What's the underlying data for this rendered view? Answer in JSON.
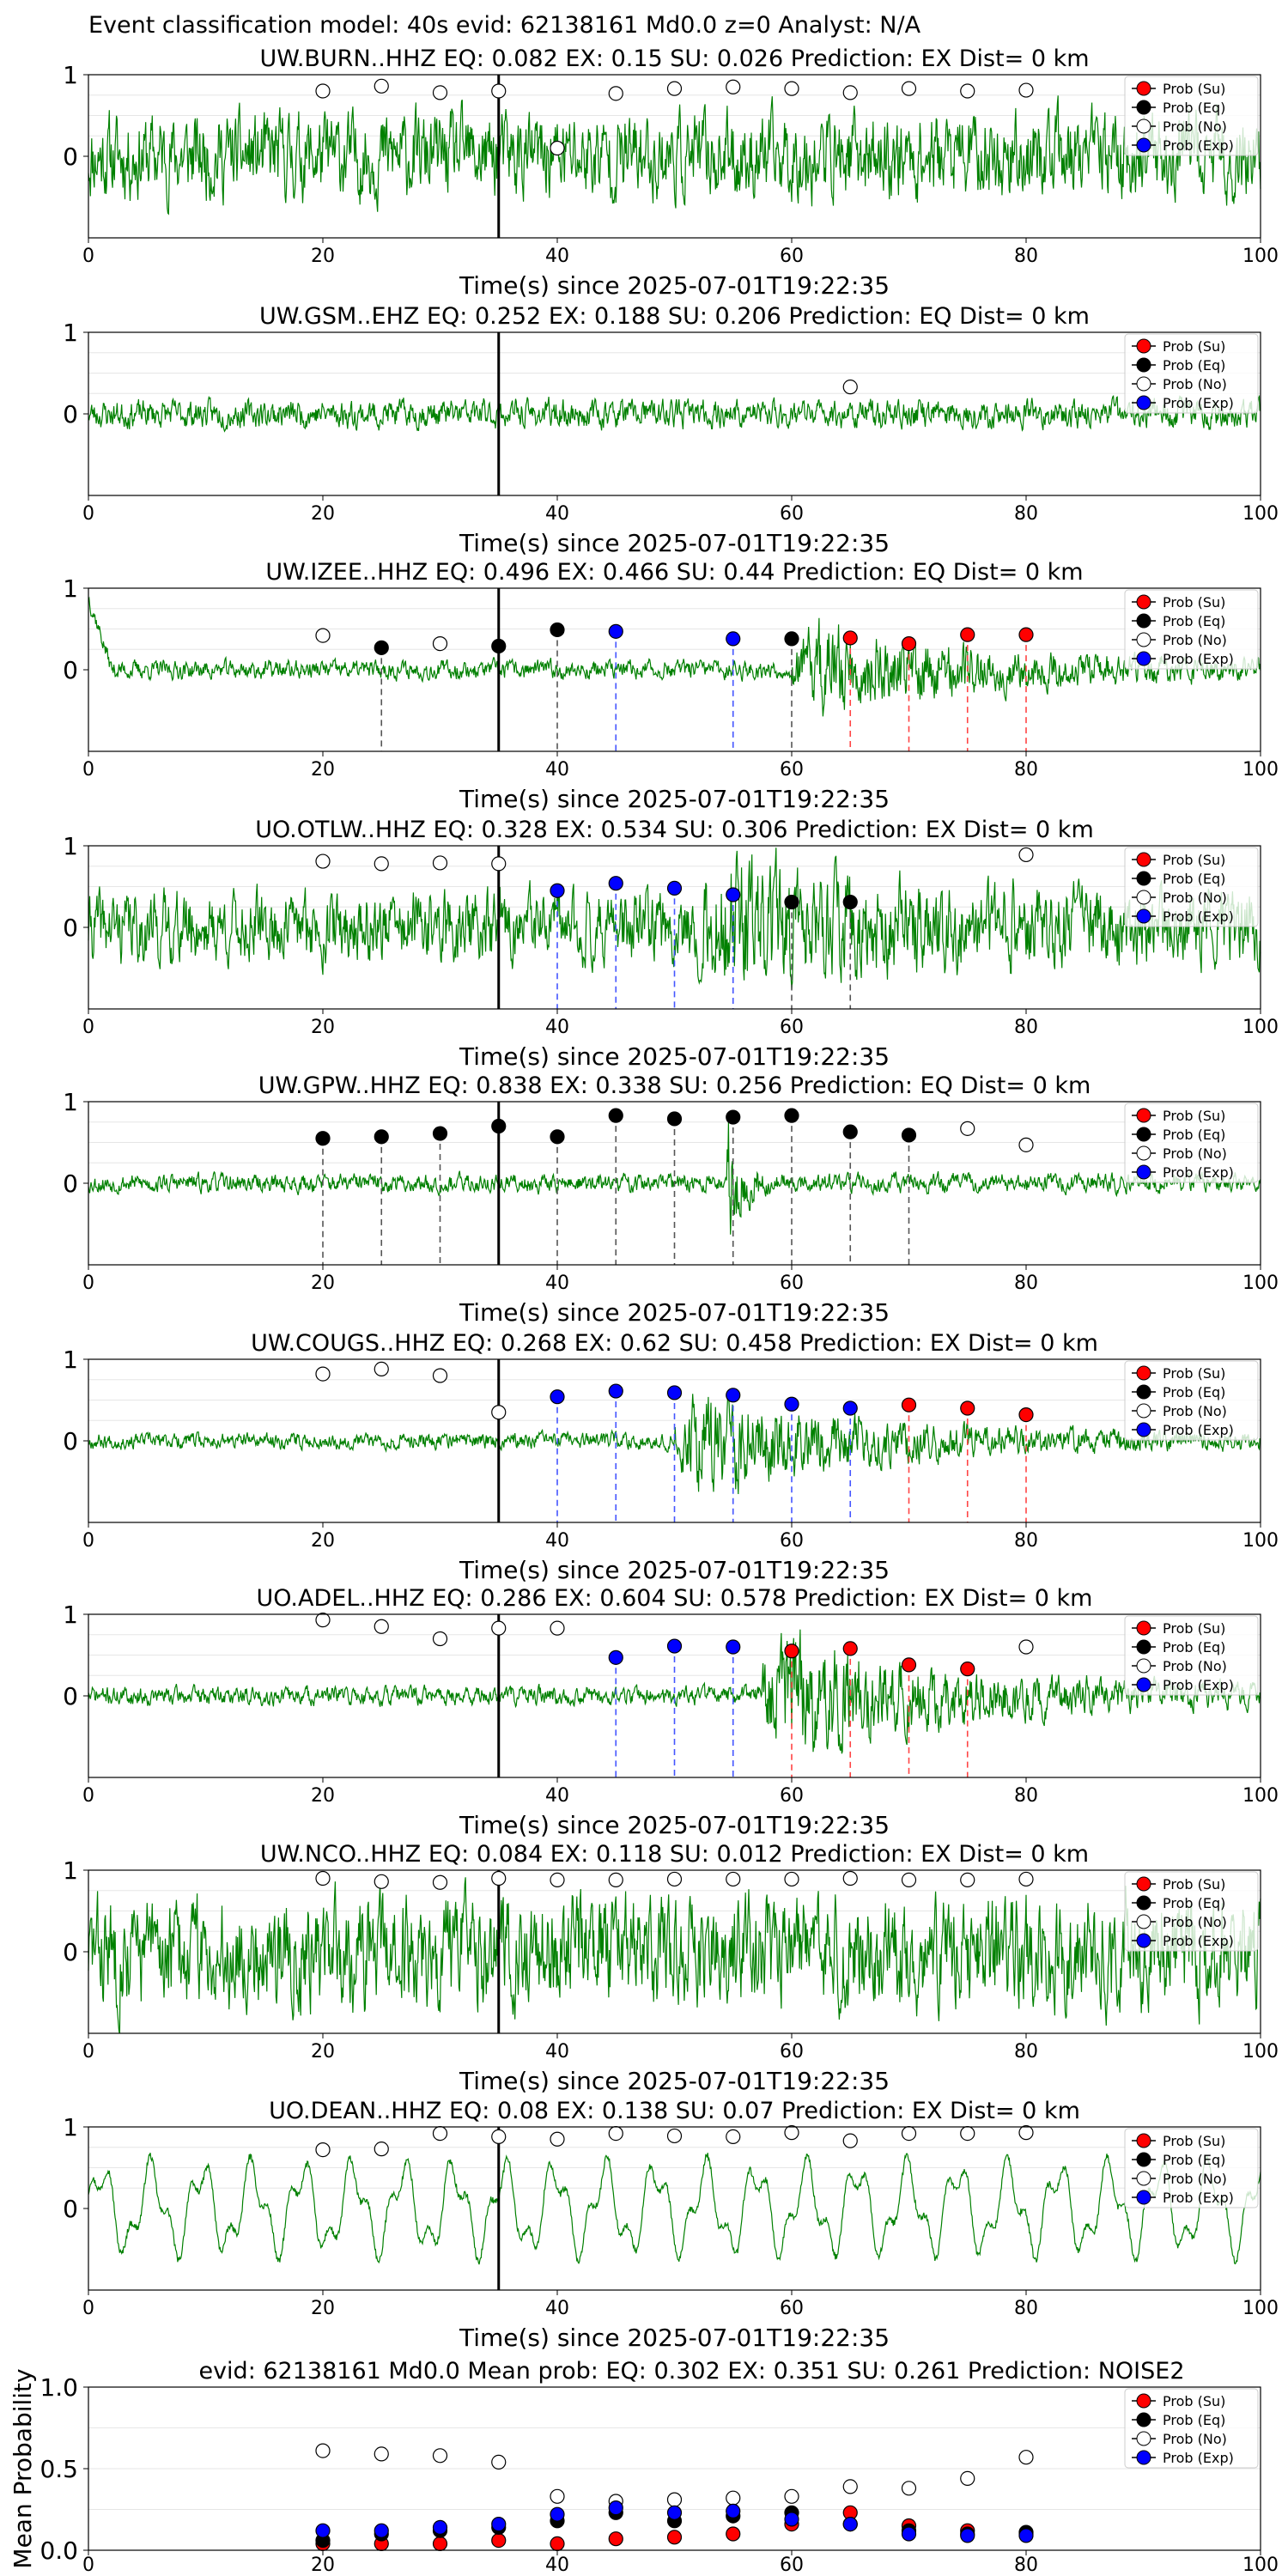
{
  "figure": {
    "suptitle": "Event classification model: 40s evid: 62138161 Md0.0 z=0 Analyst: N/A"
  },
  "legend_entries": [
    "Prob (Su)",
    "Prob (Eq)",
    "Prob (No)",
    "Prob (Exp)"
  ],
  "colors": {
    "su": "#ff0000",
    "eq": "#000000",
    "no": "#ffffff",
    "exp": "#0000ff",
    "waveform": "#008000"
  },
  "chart_data": [
    {
      "type": "line",
      "title": "UW.BURN..HHZ   EQ: 0.082  EX: 0.15  SU: 0.026   Prediction: EX    Dist= 0 km",
      "xlabel": "Time(s) since 2025-07-01T19:22:35",
      "xlim": [
        0,
        100
      ],
      "ylim": [
        -1,
        1
      ],
      "xticks": [
        0,
        20,
        40,
        60,
        80,
        100
      ],
      "yticks": [
        0,
        1
      ],
      "pick_time": 35,
      "waveform": {
        "amplitude": 0.55,
        "seed": 11,
        "style": "noise",
        "onset": 0,
        "envelope": []
      },
      "points": [
        {
          "t": 20,
          "cls": "no",
          "p": 0.8
        },
        {
          "t": 25,
          "cls": "no",
          "p": 0.86
        },
        {
          "t": 30,
          "cls": "no",
          "p": 0.78
        },
        {
          "t": 35,
          "cls": "no",
          "p": 0.8
        },
        {
          "t": 40,
          "cls": "no",
          "p": 0.1
        },
        {
          "t": 45,
          "cls": "no",
          "p": 0.77
        },
        {
          "t": 50,
          "cls": "no",
          "p": 0.83
        },
        {
          "t": 55,
          "cls": "no",
          "p": 0.85
        },
        {
          "t": 60,
          "cls": "no",
          "p": 0.83
        },
        {
          "t": 65,
          "cls": "no",
          "p": 0.78
        },
        {
          "t": 70,
          "cls": "no",
          "p": 0.83
        },
        {
          "t": 75,
          "cls": "no",
          "p": 0.8
        },
        {
          "t": 80,
          "cls": "no",
          "p": 0.81
        }
      ]
    },
    {
      "type": "line",
      "title": "UW.GSM..EHZ   EQ: 0.252  EX: 0.188  SU: 0.206   Prediction: EQ    Dist= 0 km",
      "xlabel": "Time(s) since 2025-07-01T19:22:35",
      "xlim": [
        0,
        100
      ],
      "ylim": [
        -1,
        1
      ],
      "xticks": [
        0,
        20,
        40,
        60,
        80,
        100
      ],
      "yticks": [
        0,
        1
      ],
      "pick_time": 35,
      "waveform": {
        "amplitude": 0.18,
        "seed": 23,
        "style": "noise",
        "onset": 0,
        "envelope": []
      },
      "points": [
        {
          "t": 65,
          "cls": "no",
          "p": 0.33
        }
      ]
    },
    {
      "type": "line",
      "title": "UW.IZEE..HHZ   EQ: 0.496  EX: 0.466  SU: 0.44   Prediction: EQ    Dist= 0 km",
      "xlabel": "Time(s) since 2025-07-01T19:22:35",
      "xlim": [
        0,
        100
      ],
      "ylim": [
        -1,
        1
      ],
      "xticks": [
        0,
        20,
        40,
        60,
        80,
        100
      ],
      "yticks": [
        0,
        1
      ],
      "pick_time": 35,
      "waveform": {
        "amplitude": 0.12,
        "seed": 37,
        "style": "noise",
        "onset": 60,
        "envelope": [
          0.6
        ]
      },
      "points": [
        {
          "t": 20,
          "cls": "no",
          "p": 0.42
        },
        {
          "t": 25,
          "cls": "eq",
          "p": 0.27
        },
        {
          "t": 30,
          "cls": "no",
          "p": 0.32
        },
        {
          "t": 35,
          "cls": "eq",
          "p": 0.29
        },
        {
          "t": 40,
          "cls": "eq",
          "p": 0.49
        },
        {
          "t": 45,
          "cls": "exp",
          "p": 0.47
        },
        {
          "t": 55,
          "cls": "exp",
          "p": 0.38
        },
        {
          "t": 60,
          "cls": "eq",
          "p": 0.38
        },
        {
          "t": 65,
          "cls": "su",
          "p": 0.39
        },
        {
          "t": 70,
          "cls": "su",
          "p": 0.32
        },
        {
          "t": 75,
          "cls": "su",
          "p": 0.43
        },
        {
          "t": 80,
          "cls": "su",
          "p": 0.43
        }
      ]
    },
    {
      "type": "line",
      "title": "UO.OTLW..HHZ   EQ: 0.328  EX: 0.534  SU: 0.306   Prediction: EX    Dist= 0 km",
      "xlabel": "Time(s) since 2025-07-01T19:22:35",
      "xlim": [
        0,
        100
      ],
      "ylim": [
        -1,
        1
      ],
      "xticks": [
        0,
        20,
        40,
        60,
        80,
        100
      ],
      "yticks": [
        0,
        1
      ],
      "pick_time": 35,
      "waveform": {
        "amplitude": 0.45,
        "seed": 41,
        "style": "noise",
        "onset": 52,
        "envelope": [
          0.55
        ]
      },
      "points": [
        {
          "t": 20,
          "cls": "no",
          "p": 0.81
        },
        {
          "t": 25,
          "cls": "no",
          "p": 0.78
        },
        {
          "t": 30,
          "cls": "no",
          "p": 0.79
        },
        {
          "t": 35,
          "cls": "no",
          "p": 0.78
        },
        {
          "t": 40,
          "cls": "exp",
          "p": 0.45
        },
        {
          "t": 45,
          "cls": "exp",
          "p": 0.54
        },
        {
          "t": 50,
          "cls": "exp",
          "p": 0.48
        },
        {
          "t": 55,
          "cls": "exp",
          "p": 0.4
        },
        {
          "t": 60,
          "cls": "eq",
          "p": 0.31
        },
        {
          "t": 65,
          "cls": "eq",
          "p": 0.31
        },
        {
          "t": 80,
          "cls": "no",
          "p": 0.89
        }
      ]
    },
    {
      "type": "line",
      "title": "UW.GPW..HHZ   EQ: 0.838  EX: 0.338  SU: 0.256   Prediction: EQ    Dist= 0 km",
      "xlabel": "Time(s) since 2025-07-01T19:22:35",
      "xlim": [
        0,
        100
      ],
      "ylim": [
        -1,
        1
      ],
      "xticks": [
        0,
        20,
        40,
        60,
        80,
        100
      ],
      "yticks": [
        0,
        1
      ],
      "pick_time": 35,
      "waveform": {
        "amplitude": 0.12,
        "seed": 53,
        "style": "burst",
        "onset": 54.5,
        "envelope": [
          1.0
        ]
      },
      "points": [
        {
          "t": 20,
          "cls": "eq",
          "p": 0.55
        },
        {
          "t": 25,
          "cls": "eq",
          "p": 0.57
        },
        {
          "t": 30,
          "cls": "eq",
          "p": 0.61
        },
        {
          "t": 35,
          "cls": "eq",
          "p": 0.7
        },
        {
          "t": 40,
          "cls": "eq",
          "p": 0.57
        },
        {
          "t": 45,
          "cls": "eq",
          "p": 0.83
        },
        {
          "t": 50,
          "cls": "eq",
          "p": 0.79
        },
        {
          "t": 55,
          "cls": "eq",
          "p": 0.81
        },
        {
          "t": 60,
          "cls": "eq",
          "p": 0.83
        },
        {
          "t": 65,
          "cls": "eq",
          "p": 0.63
        },
        {
          "t": 70,
          "cls": "eq",
          "p": 0.59
        },
        {
          "t": 75,
          "cls": "no",
          "p": 0.67
        },
        {
          "t": 80,
          "cls": "no",
          "p": 0.47
        }
      ]
    },
    {
      "type": "line",
      "title": "UW.COUGS..HHZ   EQ: 0.268  EX: 0.62  SU: 0.458   Prediction: EX    Dist= 0 km",
      "xlabel": "Time(s) since 2025-07-01T19:22:35",
      "xlim": [
        0,
        100
      ],
      "ylim": [
        -1,
        1
      ],
      "xticks": [
        0,
        20,
        40,
        60,
        80,
        100
      ],
      "yticks": [
        0,
        1
      ],
      "pick_time": 35,
      "waveform": {
        "amplitude": 0.1,
        "seed": 67,
        "style": "noise",
        "onset": 50,
        "envelope": [
          0.7
        ]
      },
      "points": [
        {
          "t": 20,
          "cls": "no",
          "p": 0.82
        },
        {
          "t": 25,
          "cls": "no",
          "p": 0.88
        },
        {
          "t": 30,
          "cls": "no",
          "p": 0.8
        },
        {
          "t": 35,
          "cls": "no",
          "p": 0.35
        },
        {
          "t": 40,
          "cls": "exp",
          "p": 0.54
        },
        {
          "t": 45,
          "cls": "exp",
          "p": 0.61
        },
        {
          "t": 50,
          "cls": "exp",
          "p": 0.59
        },
        {
          "t": 55,
          "cls": "exp",
          "p": 0.56
        },
        {
          "t": 60,
          "cls": "exp",
          "p": 0.45
        },
        {
          "t": 65,
          "cls": "exp",
          "p": 0.4
        },
        {
          "t": 70,
          "cls": "su",
          "p": 0.44
        },
        {
          "t": 75,
          "cls": "su",
          "p": 0.4
        },
        {
          "t": 80,
          "cls": "su",
          "p": 0.32
        }
      ]
    },
    {
      "type": "line",
      "title": "UO.ADEL..HHZ   EQ: 0.286  EX: 0.604  SU: 0.578   Prediction: EX    Dist= 0 km",
      "xlabel": "Time(s) since 2025-07-01T19:22:35",
      "xlim": [
        0,
        100
      ],
      "ylim": [
        -1,
        1
      ],
      "xticks": [
        0,
        20,
        40,
        60,
        80,
        100
      ],
      "yticks": [
        0,
        1
      ],
      "pick_time": 35,
      "waveform": {
        "amplitude": 0.12,
        "seed": 71,
        "style": "noise",
        "onset": 57,
        "envelope": [
          0.85
        ]
      },
      "points": [
        {
          "t": 20,
          "cls": "no",
          "p": 0.93
        },
        {
          "t": 25,
          "cls": "no",
          "p": 0.85
        },
        {
          "t": 30,
          "cls": "no",
          "p": 0.7
        },
        {
          "t": 35,
          "cls": "no",
          "p": 0.83
        },
        {
          "t": 40,
          "cls": "no",
          "p": 0.83
        },
        {
          "t": 45,
          "cls": "exp",
          "p": 0.47
        },
        {
          "t": 50,
          "cls": "exp",
          "p": 0.61
        },
        {
          "t": 55,
          "cls": "exp",
          "p": 0.6
        },
        {
          "t": 60,
          "cls": "su",
          "p": 0.55
        },
        {
          "t": 65,
          "cls": "su",
          "p": 0.58
        },
        {
          "t": 70,
          "cls": "su",
          "p": 0.38
        },
        {
          "t": 75,
          "cls": "su",
          "p": 0.33
        },
        {
          "t": 80,
          "cls": "no",
          "p": 0.6
        }
      ]
    },
    {
      "type": "line",
      "title": "UW.NCO..HHZ   EQ: 0.084  EX: 0.118  SU: 0.012   Prediction: EX    Dist= 0 km",
      "xlabel": "Time(s) since 2025-07-01T19:22:35",
      "xlim": [
        0,
        100
      ],
      "ylim": [
        -1,
        1
      ],
      "xticks": [
        0,
        20,
        40,
        60,
        80,
        100
      ],
      "yticks": [
        0,
        1
      ],
      "pick_time": 35,
      "waveform": {
        "amplitude": 0.7,
        "seed": 83,
        "style": "noise",
        "onset": 0,
        "envelope": []
      },
      "points": [
        {
          "t": 20,
          "cls": "no",
          "p": 0.9
        },
        {
          "t": 25,
          "cls": "no",
          "p": 0.86
        },
        {
          "t": 30,
          "cls": "no",
          "p": 0.85
        },
        {
          "t": 35,
          "cls": "no",
          "p": 0.9
        },
        {
          "t": 40,
          "cls": "no",
          "p": 0.88
        },
        {
          "t": 45,
          "cls": "no",
          "p": 0.88
        },
        {
          "t": 50,
          "cls": "no",
          "p": 0.89
        },
        {
          "t": 55,
          "cls": "no",
          "p": 0.89
        },
        {
          "t": 60,
          "cls": "no",
          "p": 0.89
        },
        {
          "t": 65,
          "cls": "no",
          "p": 0.9
        },
        {
          "t": 70,
          "cls": "no",
          "p": 0.88
        },
        {
          "t": 75,
          "cls": "no",
          "p": 0.88
        },
        {
          "t": 80,
          "cls": "no",
          "p": 0.89
        }
      ]
    },
    {
      "type": "line",
      "title": "UO.DEAN..HHZ   EQ: 0.08  EX: 0.138  SU: 0.07   Prediction: EX    Dist= 0 km",
      "xlabel": "Time(s) since 2025-07-01T19:22:35",
      "xlim": [
        0,
        100
      ],
      "ylim": [
        -1,
        1
      ],
      "xticks": [
        0,
        20,
        40,
        60,
        80,
        100
      ],
      "yticks": [
        0,
        1
      ],
      "pick_time": 35,
      "waveform": {
        "amplitude": 0.6,
        "seed": 97,
        "style": "oscillation",
        "onset": 0,
        "envelope": []
      },
      "points": [
        {
          "t": 20,
          "cls": "no",
          "p": 0.72
        },
        {
          "t": 25,
          "cls": "no",
          "p": 0.73
        },
        {
          "t": 30,
          "cls": "no",
          "p": 0.92
        },
        {
          "t": 35,
          "cls": "no",
          "p": 0.88
        },
        {
          "t": 40,
          "cls": "no",
          "p": 0.85
        },
        {
          "t": 45,
          "cls": "no",
          "p": 0.92
        },
        {
          "t": 50,
          "cls": "no",
          "p": 0.89
        },
        {
          "t": 55,
          "cls": "no",
          "p": 0.88
        },
        {
          "t": 60,
          "cls": "no",
          "p": 0.93
        },
        {
          "t": 65,
          "cls": "no",
          "p": 0.83
        },
        {
          "t": 70,
          "cls": "no",
          "p": 0.92
        },
        {
          "t": 75,
          "cls": "no",
          "p": 0.92
        },
        {
          "t": 80,
          "cls": "no",
          "p": 0.93
        }
      ]
    },
    {
      "type": "scatter",
      "title": "evid: 62138161  Md0.0   Mean prob:    EQ: 0.302  EX: 0.351  SU: 0.261   Prediction: NOISE2",
      "ylabel": "Mean Probability",
      "xlim": [
        0,
        100
      ],
      "ylim": [
        0,
        1
      ],
      "xticks": [
        0,
        20,
        40,
        60,
        80,
        100
      ],
      "yticks": [
        0.0,
        0.5,
        1.0
      ],
      "x": [
        20,
        25,
        30,
        35,
        40,
        45,
        50,
        55,
        60,
        65,
        70,
        75,
        80
      ],
      "series": [
        {
          "name": "Prob (Su)",
          "key": "su",
          "values": [
            0.04,
            0.04,
            0.04,
            0.06,
            0.04,
            0.07,
            0.08,
            0.1,
            0.16,
            0.23,
            0.15,
            0.12,
            0.1
          ]
        },
        {
          "name": "Prob (Eq)",
          "key": "eq",
          "values": [
            0.06,
            0.1,
            0.12,
            0.14,
            0.18,
            0.23,
            0.18,
            0.21,
            0.23,
            0.16,
            0.12,
            0.1,
            0.11
          ]
        },
        {
          "name": "Prob (No)",
          "key": "no",
          "values": [
            0.61,
            0.59,
            0.58,
            0.54,
            0.33,
            0.3,
            0.31,
            0.32,
            0.33,
            0.39,
            0.38,
            0.44,
            0.57
          ]
        },
        {
          "name": "Prob (Exp)",
          "key": "exp",
          "values": [
            0.12,
            0.12,
            0.14,
            0.16,
            0.22,
            0.26,
            0.23,
            0.24,
            0.19,
            0.16,
            0.1,
            0.09,
            0.09
          ]
        }
      ]
    }
  ]
}
